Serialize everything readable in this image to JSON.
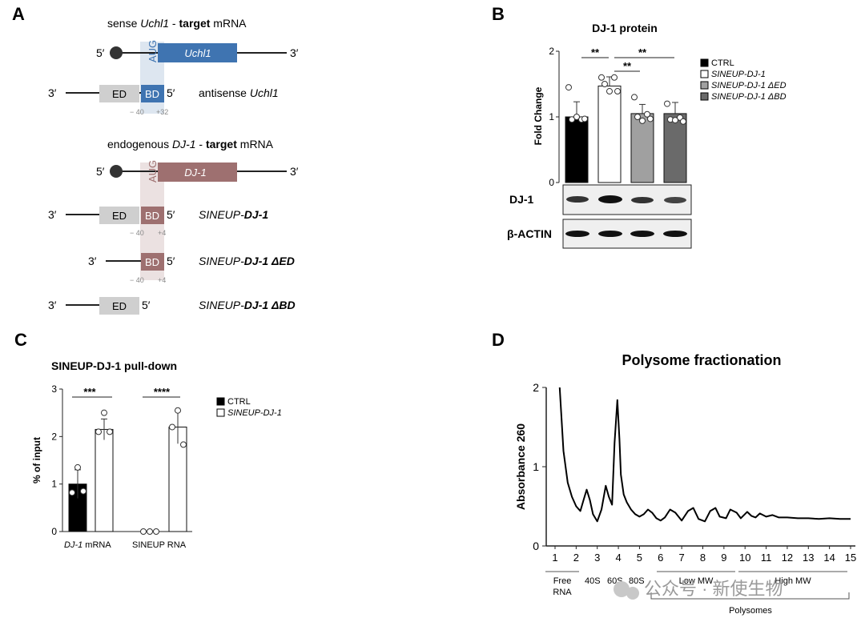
{
  "panel_labels": {
    "a": "A",
    "b": "B",
    "c": "C",
    "d": "D"
  },
  "panel_a": {
    "sense_title": {
      "pre": "sense ",
      "gene": "Uchl1",
      "mid": " - ",
      "bold": "target",
      "post": " mRNA"
    },
    "endo_title": {
      "pre": "endogenous ",
      "gene": "DJ-1",
      "mid": " - ",
      "bold": "target",
      "post": " mRNA"
    },
    "five_prime": "5′",
    "three_prime": "3′",
    "aug": "AUG",
    "uchl1_box": "Uchl1",
    "dj1_box": "DJ-1",
    "ed": "ED",
    "bd": "BD",
    "antisense_label": {
      "pre": "antisense ",
      "gene": "Uchl1"
    },
    "pos_minus40": "− 40",
    "pos_plus32": "+32",
    "pos_plus4": "+4",
    "constructs": [
      {
        "pre": "SINEUP-",
        "bold": "DJ-1"
      },
      {
        "pre": "SINEUP-",
        "bold": "DJ-1 ΔED"
      },
      {
        "pre": "SINEUP-",
        "bold": "DJ-1 ΔBD"
      }
    ]
  },
  "panel_b": {
    "title": "DJ-1 protein",
    "ylabel": "Fold Change",
    "sig": [
      "**",
      "**",
      "**"
    ],
    "blot_labels": [
      "DJ-1",
      "β-ACTIN"
    ],
    "legend": [
      "CTRL",
      "SINEUP-DJ-1",
      "SINEUP-DJ-1 ΔED",
      "SINEUP-DJ-1 ΔBD"
    ]
  },
  "panel_c": {
    "title": "SINEUP-DJ-1 pull-down",
    "ylabel": "% of input",
    "sig": [
      "***",
      "****"
    ],
    "groups": [
      {
        "gene": "DJ-1",
        "suffix": " mRNA"
      },
      {
        "gene": "SINEUP RNA",
        "suffix": ""
      }
    ],
    "legend": [
      "CTRL",
      "SINEUP-DJ-1"
    ]
  },
  "panel_d": {
    "title": "Polysome fractionation",
    "ylabel": "Absorbance 260",
    "fraction_labels": {
      "free": [
        "Free",
        "RNA"
      ],
      "s40": "40S",
      "s60": "60S",
      "s80": "80S",
      "low": "Low MW",
      "high": "High MW",
      "polysomes": "Polysomes"
    }
  },
  "watermark": "公众号 · 新使生物",
  "chart_data": [
    {
      "type": "bar",
      "title": "DJ-1 protein",
      "ylabel": "Fold Change",
      "xlabel": "",
      "ylim": [
        0,
        2
      ],
      "yticks": [
        0,
        1,
        2
      ],
      "categories": [
        "CTRL",
        "SINEUP-DJ-1",
        "SINEUP-DJ-1 ΔED",
        "SINEUP-DJ-1 ΔBD"
      ],
      "values": [
        1.0,
        1.47,
        1.05,
        1.05
      ],
      "errors": [
        0.23,
        0.14,
        0.14,
        0.17
      ],
      "colors": [
        "#000000",
        "#ffffff",
        "#a0a0a0",
        "#6a6a6a"
      ],
      "points": [
        [
          1.45,
          0.96,
          0.96,
          0.97,
          1.0
        ],
        [
          1.6,
          1.6,
          1.5,
          1.39,
          1.39
        ],
        [
          1.3,
          1.04,
          1.0,
          0.97,
          0.94
        ],
        [
          1.2,
          0.99,
          0.96,
          0.93,
          0.95
        ]
      ]
    },
    {
      "type": "bar",
      "title": "SINEUP-DJ-1 pull-down",
      "ylabel": "% of input",
      "xlabel": "",
      "ylim": [
        0,
        3
      ],
      "yticks": [
        0,
        1,
        2,
        3
      ],
      "categories": [
        "DJ-1 mRNA",
        "SINEUP RNA"
      ],
      "series": [
        {
          "name": "CTRL",
          "values": [
            1.0,
            0.0
          ],
          "errors": [
            0.3,
            0.0
          ],
          "points": [
            [
              1.35,
              0.82,
              0.85
            ],
            [
              0.0,
              0.0,
              0.0
            ]
          ]
        },
        {
          "name": "SINEUP-DJ-1",
          "values": [
            2.15,
            2.2
          ],
          "errors": [
            0.22,
            0.35
          ],
          "points": [
            [
              2.5,
              2.1,
              2.1
            ],
            [
              2.55,
              2.2,
              1.83
            ]
          ]
        }
      ]
    },
    {
      "type": "line",
      "title": "Polysome fractionation",
      "xlabel": "",
      "ylabel": "Absorbance 260",
      "xlim": [
        0.7,
        15.2
      ],
      "ylim": [
        0,
        2
      ],
      "xticks": [
        1,
        2,
        3,
        4,
        5,
        6,
        7,
        8,
        9,
        10,
        11,
        12,
        13,
        14,
        15
      ],
      "yticks": [
        0,
        1,
        2
      ],
      "x": [
        1.22,
        1.4,
        1.6,
        1.8,
        2.0,
        2.2,
        2.35,
        2.5,
        2.65,
        2.8,
        3.0,
        3.2,
        3.4,
        3.55,
        3.7,
        3.82,
        3.95,
        4.05,
        4.12,
        4.25,
        4.4,
        4.6,
        4.8,
        5.0,
        5.2,
        5.4,
        5.6,
        5.8,
        6.0,
        6.2,
        6.45,
        6.7,
        7.0,
        7.3,
        7.55,
        7.8,
        8.1,
        8.35,
        8.6,
        8.8,
        9.1,
        9.3,
        9.6,
        9.8,
        10.1,
        10.3,
        10.5,
        10.7,
        11.0,
        11.3,
        11.6,
        12.0,
        12.5,
        13.0,
        13.5,
        14.0,
        14.5,
        15.0
      ],
      "y": [
        2.0,
        1.2,
        0.8,
        0.62,
        0.5,
        0.44,
        0.58,
        0.71,
        0.58,
        0.4,
        0.31,
        0.46,
        0.76,
        0.62,
        0.52,
        1.3,
        1.84,
        1.35,
        0.9,
        0.65,
        0.55,
        0.46,
        0.4,
        0.37,
        0.4,
        0.46,
        0.42,
        0.35,
        0.32,
        0.36,
        0.46,
        0.42,
        0.32,
        0.44,
        0.48,
        0.34,
        0.31,
        0.44,
        0.48,
        0.37,
        0.35,
        0.46,
        0.42,
        0.35,
        0.43,
        0.38,
        0.36,
        0.41,
        0.37,
        0.39,
        0.36,
        0.36,
        0.35,
        0.35,
        0.34,
        0.35,
        0.34,
        0.34
      ]
    }
  ]
}
